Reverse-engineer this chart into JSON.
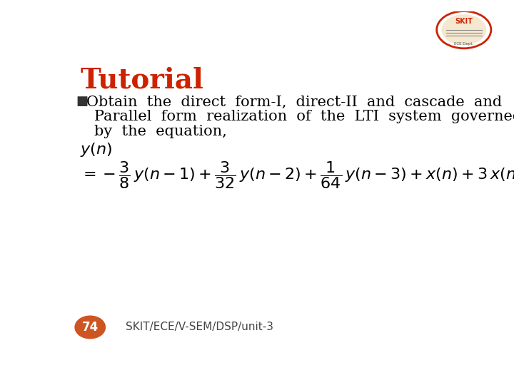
{
  "title": "Tutorial",
  "title_color": "#cc2200",
  "title_fontsize": 28,
  "bullet_symbol": "■",
  "bullet_line1": "Obtain  the  direct  form-I,  direct-II  and  cascade  and",
  "bullet_line2": "Parallel  form  realization  of  the  LTI  system  governed",
  "bullet_line3": "by  the  equation,",
  "footer_number": "74",
  "footer_number_bg": "#cc5522",
  "footer_text": "SKIT/ECE/V-SEM/DSP/unit-3",
  "bg_color": "#ffffff",
  "border_color": "#aaaaaa",
  "text_color": "#000000",
  "body_fontsize": 15,
  "footer_fontsize": 11
}
